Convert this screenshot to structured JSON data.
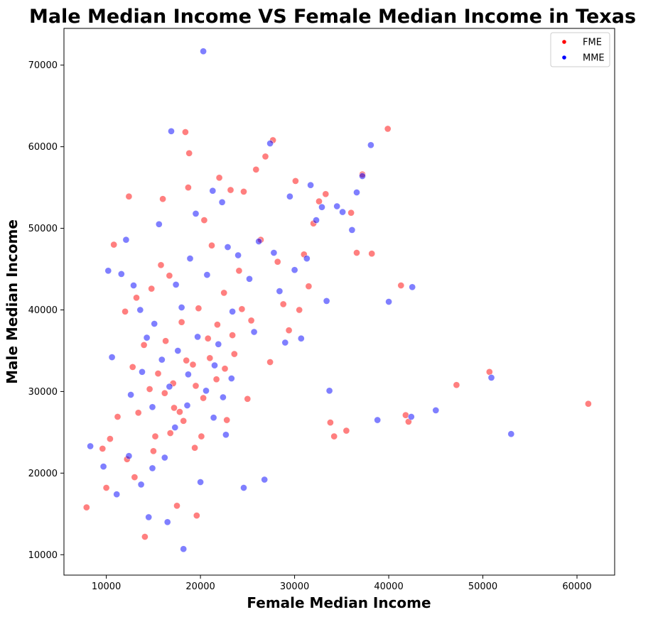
{
  "chart_data": {
    "type": "scatter",
    "title": "Male Median Income VS Female Median Income in Texas",
    "xlabel": "Female Median Income",
    "ylabel": "Male Median Income",
    "xlim": [
      5500,
      64000
    ],
    "ylim": [
      7500,
      74500
    ],
    "xticks": [
      10000,
      20000,
      30000,
      40000,
      50000,
      60000
    ],
    "yticks": [
      10000,
      20000,
      30000,
      40000,
      50000,
      60000,
      70000
    ],
    "grid": false,
    "legend": {
      "placement": "top-right",
      "entries": [
        {
          "label": "FME",
          "color": "#ff0000"
        },
        {
          "label": "MME",
          "color": "#0000ff"
        }
      ]
    },
    "series": [
      {
        "name": "FME",
        "color": "#ff0000",
        "points": [
          [
            7900,
            15800
          ],
          [
            9600,
            23000
          ],
          [
            10000,
            18200
          ],
          [
            10400,
            24200
          ],
          [
            10800,
            48000
          ],
          [
            11200,
            26900
          ],
          [
            12000,
            39800
          ],
          [
            12400,
            53900
          ],
          [
            12800,
            33000
          ],
          [
            13200,
            41500
          ],
          [
            14000,
            35700
          ],
          [
            14100,
            12200
          ],
          [
            14800,
            42600
          ],
          [
            15200,
            24500
          ],
          [
            15800,
            45500
          ],
          [
            16000,
            53600
          ],
          [
            16200,
            29800
          ],
          [
            16700,
            44200
          ],
          [
            17200,
            28000
          ],
          [
            17500,
            16000
          ],
          [
            18000,
            38500
          ],
          [
            18400,
            61800
          ],
          [
            18700,
            55000
          ],
          [
            18800,
            59200
          ],
          [
            19200,
            33300
          ],
          [
            19600,
            14800
          ],
          [
            19800,
            40200
          ],
          [
            20100,
            24500
          ],
          [
            20400,
            51000
          ],
          [
            20800,
            36500
          ],
          [
            21200,
            47900
          ],
          [
            21700,
            31500
          ],
          [
            22000,
            56200
          ],
          [
            22500,
            42100
          ],
          [
            22800,
            26500
          ],
          [
            23200,
            54700
          ],
          [
            23600,
            34600
          ],
          [
            24100,
            44800
          ],
          [
            24600,
            54500
          ],
          [
            25000,
            29100
          ],
          [
            25400,
            38700
          ],
          [
            25900,
            57200
          ],
          [
            26400,
            48600
          ],
          [
            26900,
            58800
          ],
          [
            27400,
            33600
          ],
          [
            27700,
            60800
          ],
          [
            28200,
            45900
          ],
          [
            28800,
            40700
          ],
          [
            29400,
            37500
          ],
          [
            30100,
            55800
          ],
          [
            30500,
            40000
          ],
          [
            31000,
            46800
          ],
          [
            31500,
            42900
          ],
          [
            32000,
            50600
          ],
          [
            32600,
            53300
          ],
          [
            33300,
            54200
          ],
          [
            33800,
            26200
          ],
          [
            34200,
            24500
          ],
          [
            35500,
            25200
          ],
          [
            36000,
            51900
          ],
          [
            36600,
            47000
          ],
          [
            37200,
            56600
          ],
          [
            38200,
            46900
          ],
          [
            39900,
            62200
          ],
          [
            41300,
            43000
          ],
          [
            41800,
            27100
          ],
          [
            42100,
            26300
          ],
          [
            47200,
            30800
          ],
          [
            50700,
            32400
          ],
          [
            61200,
            28500
          ],
          [
            13400,
            27400
          ],
          [
            14600,
            30300
          ],
          [
            15500,
            32200
          ],
          [
            16300,
            36200
          ],
          [
            17100,
            31000
          ],
          [
            17800,
            27500
          ],
          [
            18500,
            33800
          ],
          [
            19500,
            30700
          ],
          [
            20300,
            29200
          ],
          [
            21000,
            34100
          ],
          [
            21800,
            38200
          ],
          [
            22600,
            32800
          ],
          [
            23400,
            36900
          ],
          [
            24400,
            40100
          ],
          [
            12200,
            21700
          ],
          [
            13000,
            19500
          ],
          [
            15000,
            22700
          ],
          [
            16800,
            24900
          ],
          [
            18200,
            26400
          ],
          [
            19400,
            23100
          ]
        ]
      },
      {
        "name": "MME",
        "color": "#0000ff",
        "points": [
          [
            8300,
            23300
          ],
          [
            9700,
            20800
          ],
          [
            10200,
            44800
          ],
          [
            10600,
            34200
          ],
          [
            11600,
            44400
          ],
          [
            12100,
            48600
          ],
          [
            12900,
            43000
          ],
          [
            13600,
            40000
          ],
          [
            14300,
            36600
          ],
          [
            14500,
            14600
          ],
          [
            15100,
            38300
          ],
          [
            15600,
            50500
          ],
          [
            16500,
            14000
          ],
          [
            16900,
            61900
          ],
          [
            17400,
            43100
          ],
          [
            18000,
            40300
          ],
          [
            18200,
            10700
          ],
          [
            18900,
            46300
          ],
          [
            19500,
            51800
          ],
          [
            20300,
            71700
          ],
          [
            20700,
            44300
          ],
          [
            21300,
            54600
          ],
          [
            21900,
            35800
          ],
          [
            22300,
            53200
          ],
          [
            22900,
            47700
          ],
          [
            23400,
            39800
          ],
          [
            24000,
            46700
          ],
          [
            24600,
            18200
          ],
          [
            25200,
            43800
          ],
          [
            25700,
            37300
          ],
          [
            26200,
            48400
          ],
          [
            26800,
            19200
          ],
          [
            27400,
            60400
          ],
          [
            27800,
            47000
          ],
          [
            28400,
            42300
          ],
          [
            29000,
            36000
          ],
          [
            29500,
            53900
          ],
          [
            30000,
            44900
          ],
          [
            30700,
            36500
          ],
          [
            31300,
            46300
          ],
          [
            31700,
            55300
          ],
          [
            32300,
            51000
          ],
          [
            32900,
            52600
          ],
          [
            33400,
            41100
          ],
          [
            33700,
            30100
          ],
          [
            34500,
            52700
          ],
          [
            35100,
            52000
          ],
          [
            36100,
            49800
          ],
          [
            36600,
            54400
          ],
          [
            37200,
            56400
          ],
          [
            38100,
            60200
          ],
          [
            38800,
            26500
          ],
          [
            40000,
            41000
          ],
          [
            42400,
            26900
          ],
          [
            42500,
            42800
          ],
          [
            45000,
            27700
          ],
          [
            50900,
            31700
          ],
          [
            53000,
            24800
          ],
          [
            12600,
            29600
          ],
          [
            13800,
            32400
          ],
          [
            14900,
            28100
          ],
          [
            15900,
            33900
          ],
          [
            16700,
            30600
          ],
          [
            17600,
            35000
          ],
          [
            18700,
            32100
          ],
          [
            19700,
            36700
          ],
          [
            20600,
            30100
          ],
          [
            21500,
            33200
          ],
          [
            22400,
            29300
          ],
          [
            23300,
            31600
          ],
          [
            11100,
            17400
          ],
          [
            12400,
            22100
          ],
          [
            13700,
            18600
          ],
          [
            14900,
            20600
          ],
          [
            16200,
            21900
          ],
          [
            17300,
            25600
          ],
          [
            18600,
            28300
          ],
          [
            20000,
            18900
          ],
          [
            21400,
            26800
          ],
          [
            22700,
            24700
          ]
        ]
      }
    ]
  }
}
